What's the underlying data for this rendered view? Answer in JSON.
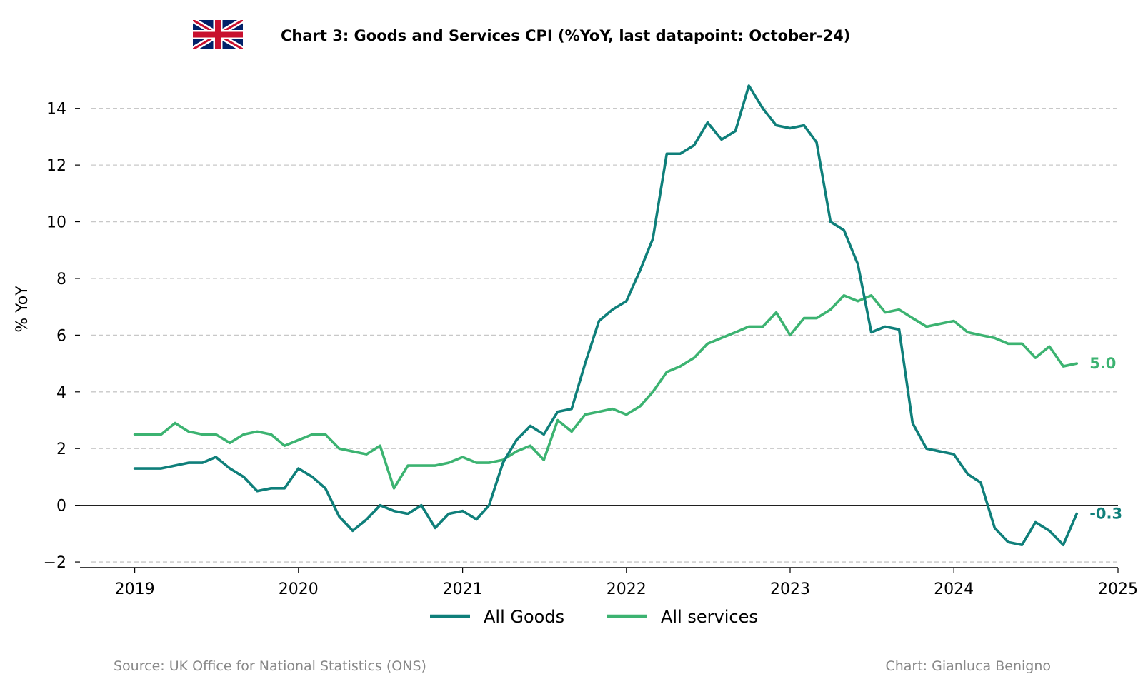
{
  "flag_icon": "union-jack-flag-icon",
  "colors": {
    "goods": "#0f7f7a",
    "services": "#3cb371",
    "grid": "#c8c8c8",
    "footer": "#888888"
  },
  "footer": {
    "source": "Source: UK Office for National Statistics (ONS)",
    "credit": "Chart: Gianluca Benigno"
  },
  "chart_data": {
    "type": "line",
    "title": "Chart 3: Goods and Services CPI (%YoY, last datapoint: October-24)",
    "xlabel": "",
    "ylabel": "% YoY",
    "xlim": [
      "2018-09-01",
      "2025-01-01"
    ],
    "ylim": [
      -2.2,
      15
    ],
    "x_ticks": [
      "2019",
      "2020",
      "2021",
      "2022",
      "2023",
      "2024",
      "2025"
    ],
    "y_ticks": [
      -2,
      0,
      2,
      4,
      6,
      8,
      10,
      12,
      14
    ],
    "y_tick_labels": [
      "−2",
      "0",
      "2",
      "4",
      "6",
      "8",
      "10",
      "12",
      "14"
    ],
    "grid": "horizontal dashed",
    "legend_position": "bottom-center",
    "end_labels": {
      "goods": "-0.3",
      "services": "5.0"
    },
    "x": [
      "2019-01",
      "2019-02",
      "2019-03",
      "2019-04",
      "2019-05",
      "2019-06",
      "2019-07",
      "2019-08",
      "2019-09",
      "2019-10",
      "2019-11",
      "2019-12",
      "2020-01",
      "2020-02",
      "2020-03",
      "2020-04",
      "2020-05",
      "2020-06",
      "2020-07",
      "2020-08",
      "2020-09",
      "2020-10",
      "2020-11",
      "2020-12",
      "2021-01",
      "2021-02",
      "2021-03",
      "2021-04",
      "2021-05",
      "2021-06",
      "2021-07",
      "2021-08",
      "2021-09",
      "2021-10",
      "2021-11",
      "2021-12",
      "2022-01",
      "2022-02",
      "2022-03",
      "2022-04",
      "2022-05",
      "2022-06",
      "2022-07",
      "2022-08",
      "2022-09",
      "2022-10",
      "2022-11",
      "2022-12",
      "2023-01",
      "2023-02",
      "2023-03",
      "2023-04",
      "2023-05",
      "2023-06",
      "2023-07",
      "2023-08",
      "2023-09",
      "2023-10",
      "2023-11",
      "2023-12",
      "2024-01",
      "2024-02",
      "2024-03",
      "2024-04",
      "2024-05",
      "2024-06",
      "2024-07",
      "2024-08",
      "2024-09",
      "2024-10"
    ],
    "series": [
      {
        "name": "All Goods",
        "key": "goods",
        "values": [
          1.3,
          1.3,
          1.3,
          1.4,
          1.5,
          1.5,
          1.7,
          1.3,
          1.0,
          0.5,
          0.6,
          0.6,
          1.3,
          1.0,
          0.6,
          -0.4,
          -0.9,
          -0.5,
          0.0,
          -0.2,
          -0.3,
          0.0,
          -0.8,
          -0.3,
          -0.2,
          -0.5,
          0.0,
          1.5,
          2.3,
          2.8,
          2.5,
          3.3,
          3.4,
          5.0,
          6.5,
          6.9,
          7.2,
          8.3,
          9.4,
          12.4,
          12.4,
          12.7,
          13.5,
          12.9,
          13.2,
          14.8,
          14.0,
          13.4,
          13.3,
          13.4,
          12.8,
          10.0,
          9.7,
          8.5,
          6.1,
          6.3,
          6.2,
          2.9,
          2.0,
          1.9,
          1.8,
          1.1,
          0.8,
          -0.8,
          -1.3,
          -1.4,
          -0.6,
          -0.9,
          -1.4,
          -0.3
        ]
      },
      {
        "name": "All services",
        "key": "services",
        "values": [
          2.5,
          2.5,
          2.5,
          2.9,
          2.6,
          2.5,
          2.5,
          2.2,
          2.5,
          2.6,
          2.5,
          2.1,
          2.3,
          2.5,
          2.5,
          2.0,
          1.9,
          1.8,
          2.1,
          0.6,
          1.4,
          1.4,
          1.4,
          1.5,
          1.7,
          1.5,
          1.5,
          1.6,
          1.9,
          2.1,
          1.6,
          3.0,
          2.6,
          3.2,
          3.3,
          3.4,
          3.2,
          3.5,
          4.0,
          4.7,
          4.9,
          5.2,
          5.7,
          5.9,
          6.1,
          6.3,
          6.3,
          6.8,
          6.0,
          6.6,
          6.6,
          6.9,
          7.4,
          7.2,
          7.4,
          6.8,
          6.9,
          6.6,
          6.3,
          6.4,
          6.5,
          6.1,
          6.0,
          5.9,
          5.7,
          5.7,
          5.2,
          5.6,
          4.9,
          5.0
        ]
      }
    ]
  }
}
